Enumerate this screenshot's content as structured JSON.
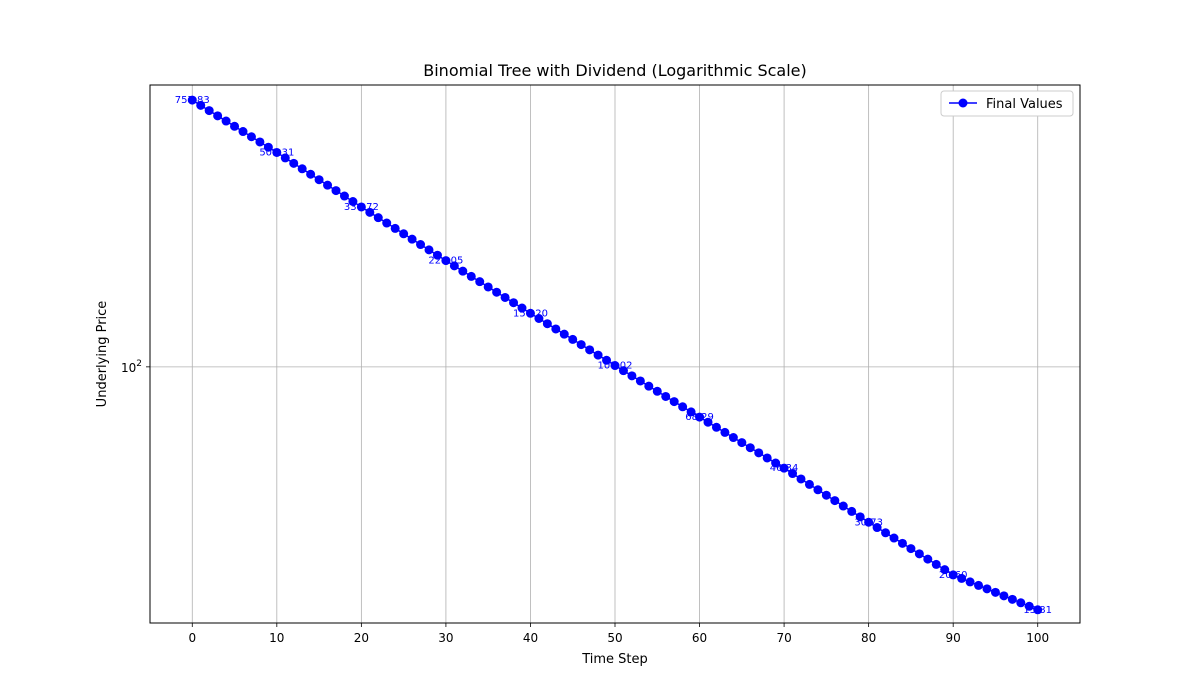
{
  "chart_data": {
    "type": "line",
    "title": "Binomial Tree with Dividend (Logarithmic Scale)",
    "xlabel": "Time Step",
    "ylabel": "Underlying Price",
    "xlim": [
      -5,
      105
    ],
    "ylim": [
      14.3,
      850
    ],
    "yscale": "log",
    "grid": true,
    "legend_position": "top-right",
    "x_ticks": [
      0,
      10,
      20,
      30,
      40,
      50,
      60,
      70,
      80,
      90,
      100
    ],
    "y_ticks": [
      {
        "value": 100,
        "base": "10",
        "exp": "2"
      }
    ],
    "series": [
      {
        "name": "Final Values",
        "color": "#0000ff",
        "marker": "circle",
        "x_start": 0,
        "x_end": 100,
        "y_start": 757.83,
        "y_end": 15.81
      }
    ],
    "point_labels": [
      {
        "x": 0,
        "y": 757.83,
        "text": "757.83"
      },
      {
        "x": 10,
        "y": 509.31,
        "text": "509.31"
      },
      {
        "x": 20,
        "y": 336.72,
        "text": "336.72"
      },
      {
        "x": 30,
        "y": 224.05,
        "text": "224.05"
      },
      {
        "x": 40,
        "y": 150.2,
        "text": "150.20"
      },
      {
        "x": 50,
        "y": 101.02,
        "text": "101.02"
      },
      {
        "x": 60,
        "y": 68.29,
        "text": "68.29"
      },
      {
        "x": 70,
        "y": 46.34,
        "text": "46.34"
      },
      {
        "x": 80,
        "y": 30.73,
        "text": "30.73"
      },
      {
        "x": 90,
        "y": 20.6,
        "text": "20.60"
      },
      {
        "x": 100,
        "y": 15.81,
        "text": "15.81"
      }
    ]
  }
}
